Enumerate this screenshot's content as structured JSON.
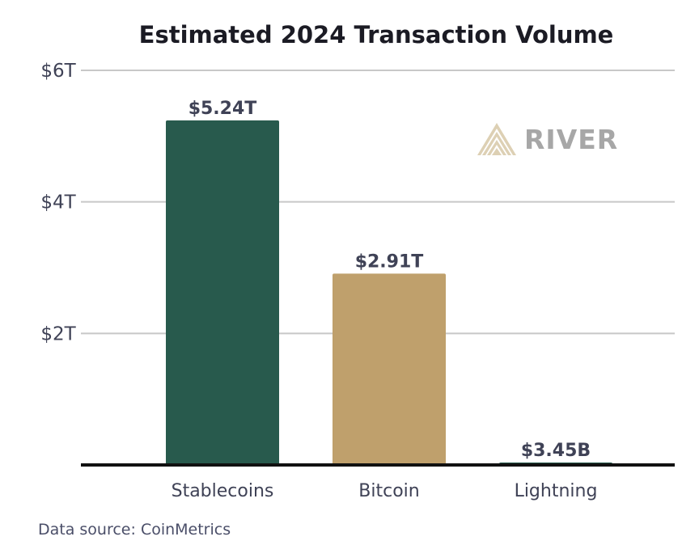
{
  "chart_data": {
    "type": "bar",
    "title": "Estimated 2024 Transaction Volume",
    "categories": [
      "Stablecoins",
      "Bitcoin",
      "Lightning"
    ],
    "values": [
      5.24,
      2.91,
      0.00345
    ],
    "value_unit": "trillion USD",
    "data_labels": [
      "$5.24T",
      "$2.91T",
      "$3.45B"
    ],
    "bar_colors": [
      "#285a4d",
      "#bfa06c",
      "#285a4d"
    ],
    "ylim": [
      0,
      6
    ],
    "yticks": [
      2,
      4,
      6
    ],
    "ytick_labels": [
      "$2T",
      "$4T",
      "$6T"
    ],
    "grid": true,
    "legend": "none"
  },
  "logo": {
    "text": "RIVER",
    "icon": "river-chevron-logo",
    "color": "#d6c6a6"
  },
  "footer": {
    "source": "Data source: CoinMetrics"
  },
  "colors": {
    "axis": "#111111",
    "grid": "#c8c8c8",
    "text": "#3f4256"
  }
}
